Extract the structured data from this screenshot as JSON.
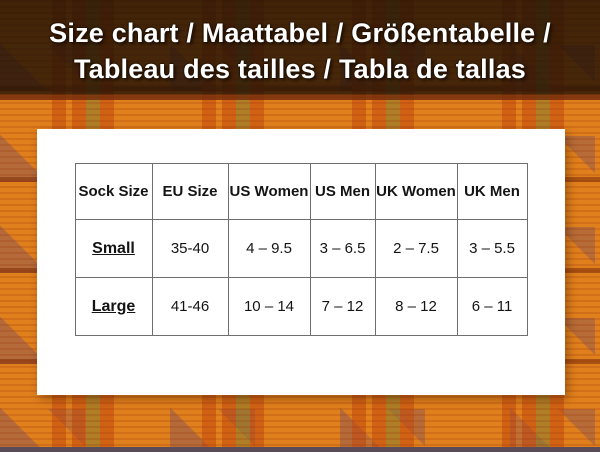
{
  "title": {
    "line1": "Size chart / Maattabel / Größentabelle /",
    "line2": "Tableau des tailles / Tabla de tallas"
  },
  "table": {
    "columns": [
      "Sock Size",
      "EU Size",
      "US Women",
      "US Men",
      "UK Women",
      "UK Men"
    ],
    "rows": [
      {
        "label": "Small",
        "values": [
          "35-40",
          "4 – 9.5",
          "3 – 6.5",
          "2 – 7.5",
          "3 – 5.5"
        ]
      },
      {
        "label": "Large",
        "values": [
          "41-46",
          "10 – 14",
          "7 – 12",
          "8 – 12",
          "6 – 11"
        ]
      }
    ]
  },
  "colors": {
    "kente_orange": "#E0801C",
    "kente_stripe_red": "#C44A0E",
    "kente_olive": "#8F7D2C",
    "kente_sienna": "#B2693B",
    "banner_overlay": "#1E0F04",
    "banner_bottom_band": "#742C0B",
    "bottom_edge_band": "#594B57",
    "panel_background": "#FFFFFF",
    "table_border": "#6E6E6E",
    "table_text": "#141414",
    "title_text": "#FFFFFF"
  }
}
